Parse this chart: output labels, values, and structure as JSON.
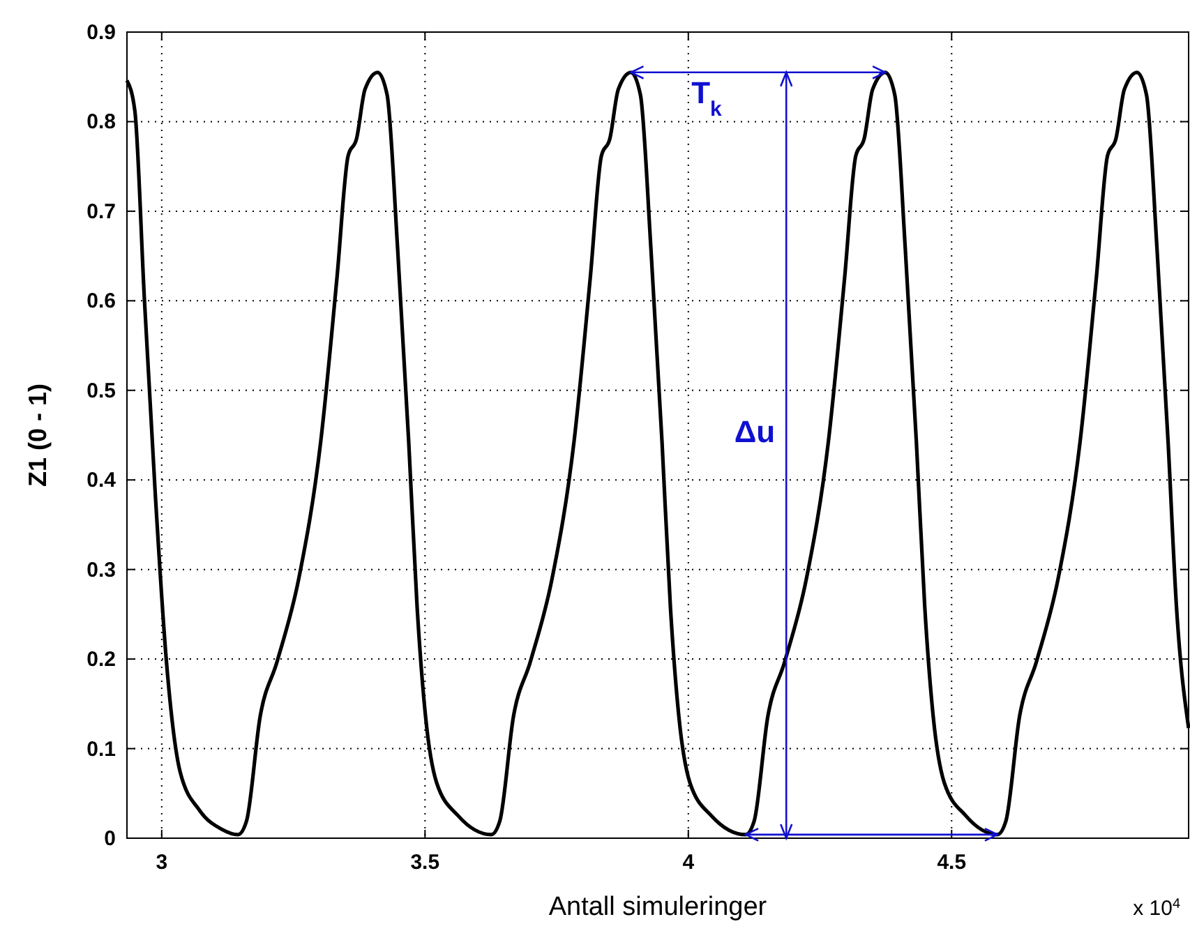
{
  "chart_data": {
    "type": "line",
    "xlabel": "Antall simuleringer",
    "ylabel": "Z1 (0 - 1)",
    "xlim": [
      2.934,
      4.95
    ],
    "xticks": [
      3,
      3.5,
      4,
      4.5
    ],
    "ylim": [
      0,
      0.9
    ],
    "yticks": [
      0,
      0.1,
      0.2,
      0.3,
      0.4,
      0.5,
      0.6,
      0.7,
      0.8,
      0.9
    ],
    "grid": true,
    "line_style": "solid",
    "marker": "none",
    "series": [
      {
        "color": "#000000",
        "x": [
          2.934,
          2.949,
          2.967,
          2.988,
          3.009,
          3.035,
          3.072,
          3.114,
          3.145,
          3.161,
          3.187,
          3.219,
          3.26,
          3.302,
          3.333,
          3.354,
          3.37,
          3.386,
          3.41,
          3.428,
          3.448,
          3.469,
          3.485,
          3.501,
          3.522,
          3.563,
          3.626,
          3.642,
          3.668,
          3.7,
          3.741,
          3.783,
          3.814,
          3.835,
          3.851,
          3.867,
          3.891,
          3.909,
          3.929,
          3.95,
          3.966,
          3.982,
          4.003,
          4.044,
          4.109,
          4.125,
          4.151,
          4.183,
          4.224,
          4.266,
          4.297,
          4.318,
          4.334,
          4.35,
          4.374,
          4.392,
          4.412,
          4.433,
          4.449,
          4.465,
          4.486,
          4.527,
          4.587,
          4.603,
          4.629,
          4.661,
          4.702,
          4.744,
          4.775,
          4.796,
          4.812,
          4.828,
          4.852,
          4.87,
          4.89,
          4.911,
          4.927,
          4.95
        ],
        "values": [
          0.846,
          0.812,
          0.603,
          0.382,
          0.197,
          0.074,
          0.031,
          0.01,
          0.004,
          0.019,
          0.136,
          0.197,
          0.289,
          0.443,
          0.627,
          0.762,
          0.781,
          0.836,
          0.855,
          0.83,
          0.658,
          0.443,
          0.258,
          0.136,
          0.062,
          0.025,
          0.004,
          0.019,
          0.136,
          0.197,
          0.289,
          0.443,
          0.627,
          0.762,
          0.781,
          0.836,
          0.855,
          0.83,
          0.658,
          0.443,
          0.258,
          0.136,
          0.062,
          0.025,
          0.004,
          0.019,
          0.136,
          0.197,
          0.289,
          0.443,
          0.627,
          0.762,
          0.781,
          0.836,
          0.855,
          0.83,
          0.658,
          0.443,
          0.258,
          0.136,
          0.062,
          0.025,
          0.004,
          0.019,
          0.136,
          0.197,
          0.289,
          0.443,
          0.627,
          0.762,
          0.781,
          0.836,
          0.855,
          0.83,
          0.658,
          0.443,
          0.258,
          0.123
        ]
      }
    ],
    "ref_lines": [
      {
        "axis": "x",
        "value": 4.186,
        "label": "Δu",
        "color": "#1010d0"
      }
    ],
    "annotations": [
      "T$_{k}$",
      "x 10$^{4}$"
    ]
  }
}
